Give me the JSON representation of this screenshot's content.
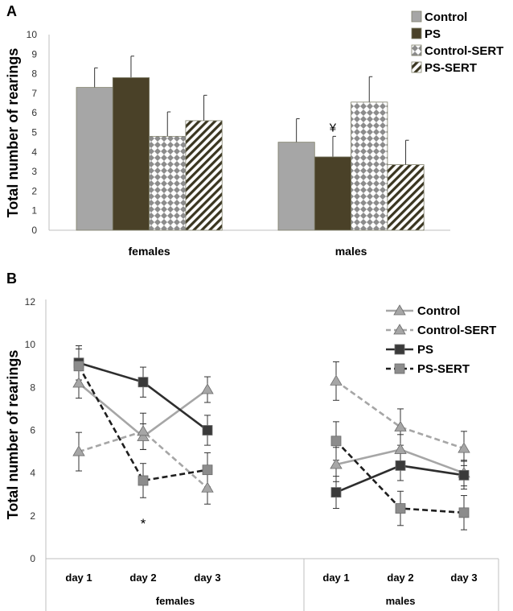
{
  "chart_data": [
    {
      "type": "bar",
      "panel_label": "A",
      "ylabel": "Total number of rearings",
      "xlabel": "",
      "ylim": [
        0,
        10
      ],
      "yticks": [
        "0",
        "1",
        "2",
        "3",
        "4",
        "5",
        "6",
        "7",
        "8",
        "9",
        "10"
      ],
      "categories": [
        "females",
        "males"
      ],
      "legend_position": "top-right",
      "series": [
        {
          "name": "Control",
          "values": [
            7.3,
            4.5
          ],
          "errors": [
            1.0,
            1.2
          ],
          "fill": "#a6a6a6",
          "pattern": "solid"
        },
        {
          "name": "PS",
          "values": [
            7.8,
            3.75
          ],
          "errors": [
            1.1,
            1.05
          ],
          "fill": "#4a4128",
          "pattern": "solid"
        },
        {
          "name": "Control-SERT",
          "values": [
            4.8,
            6.55
          ],
          "errors": [
            1.25,
            1.3
          ],
          "fill": "#8c8c8c",
          "pattern": "diamonds"
        },
        {
          "name": "PS-SERT",
          "values": [
            5.6,
            3.35
          ],
          "errors": [
            1.3,
            1.25
          ],
          "fill": "#3a3520",
          "pattern": "stripes"
        }
      ],
      "annotations": [
        {
          "text": "¥",
          "category": "males",
          "series": "PS"
        }
      ]
    },
    {
      "type": "line",
      "panel_label": "B",
      "ylabel": "Total number of rearings",
      "ylim": [
        0,
        12
      ],
      "yticks": [
        "0",
        "2",
        "4",
        "6",
        "8",
        "10",
        "12"
      ],
      "groups": [
        {
          "name": "females",
          "x": [
            "day 1",
            "day 2",
            "day 3"
          ]
        },
        {
          "name": "males",
          "x": [
            "day 1",
            "day 2",
            "day 3"
          ]
        }
      ],
      "legend_position": "top-right",
      "series": [
        {
          "name": "Control",
          "marker": "triangle",
          "dash": false,
          "color": "#a6a6a6",
          "values": [
            [
              8.2,
              5.7,
              7.9
            ],
            [
              4.4,
              5.1,
              4.0
            ]
          ],
          "errors": [
            [
              0.7,
              0.6,
              0.6
            ],
            [
              0.8,
              0.7,
              0.6
            ]
          ]
        },
        {
          "name": "Control-SERT",
          "marker": "triangle",
          "dash": true,
          "color": "#a6a6a6",
          "values": [
            [
              5.0,
              5.95,
              3.3
            ],
            [
              8.3,
              6.15,
              5.15
            ]
          ],
          "errors": [
            [
              0.9,
              0.85,
              0.75
            ],
            [
              0.9,
              0.85,
              0.8
            ]
          ]
        },
        {
          "name": "PS",
          "marker": "square",
          "dash": false,
          "color": "#2e2e2e",
          "values": [
            [
              9.15,
              8.25,
              6.0
            ],
            [
              3.1,
              4.35,
              3.9
            ]
          ],
          "errors": [
            [
              0.8,
              0.7,
              0.7
            ],
            [
              0.75,
              0.7,
              0.65
            ]
          ]
        },
        {
          "name": "PS-SERT",
          "marker": "square",
          "dash": true,
          "color": "#1e1e1e",
          "marker_fill": "#8c8c8c",
          "values": [
            [
              9.0,
              3.65,
              4.15
            ],
            [
              5.5,
              2.35,
              2.15
            ]
          ],
          "errors": [
            [
              0.8,
              0.8,
              0.8
            ],
            [
              0.9,
              0.8,
              0.8
            ]
          ]
        }
      ],
      "annotations": [
        {
          "text": "*",
          "group": "females",
          "x": "day 2"
        }
      ]
    }
  ]
}
